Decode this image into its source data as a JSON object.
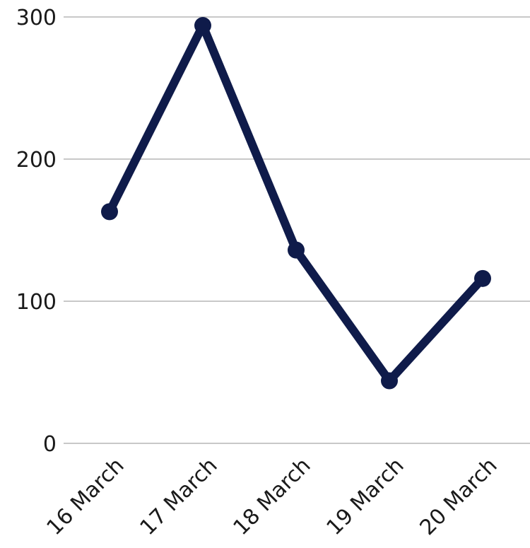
{
  "chart_data": {
    "type": "line",
    "categories": [
      "16 March",
      "17 March",
      "18 March",
      "19 March",
      "20 March"
    ],
    "series": [
      {
        "values": [
          163,
          294,
          136,
          44,
          116
        ]
      }
    ],
    "yticks": [
      "0",
      "100",
      "200",
      "300"
    ],
    "ylim": [
      0,
      300
    ],
    "grid": true,
    "colors": {
      "line": "#0f1b4a",
      "grid": "#c8c8c8",
      "text": "#1a1a1a"
    }
  }
}
